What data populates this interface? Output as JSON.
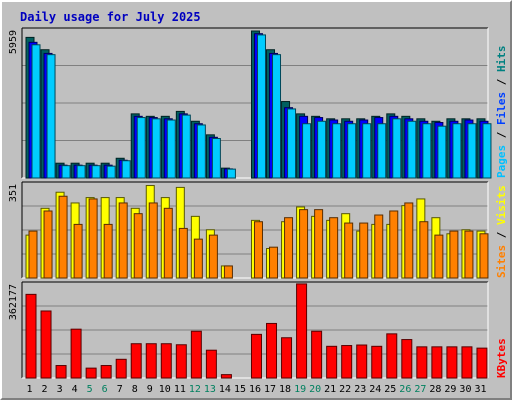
{
  "title": "Daily usage for July 2025",
  "chart_data": [
    {
      "type": "bar",
      "panel": "top",
      "max_label": "5959",
      "ylim": [
        0,
        5959
      ],
      "x": [
        1,
        2,
        3,
        4,
        5,
        6,
        7,
        8,
        9,
        10,
        11,
        12,
        13,
        14,
        15,
        16,
        17,
        18,
        19,
        20,
        21,
        22,
        23,
        24,
        25,
        26,
        27,
        28,
        29,
        30,
        31
      ],
      "series": [
        {
          "name": "Hits",
          "color": "#006060",
          "values": [
            5700,
            5200,
            600,
            600,
            600,
            600,
            800,
            2600,
            2500,
            2500,
            2700,
            2300,
            1750,
            400,
            0,
            5959,
            5200,
            3100,
            2600,
            2500,
            2400,
            2400,
            2400,
            2500,
            2600,
            2500,
            2400,
            2300,
            2400,
            2400,
            2400
          ]
        },
        {
          "name": "Files",
          "color": "#0000ff",
          "values": [
            5500,
            5050,
            520,
            520,
            520,
            520,
            720,
            2500,
            2450,
            2400,
            2600,
            2200,
            1650,
            370,
            0,
            5850,
            5050,
            2850,
            2500,
            2450,
            2350,
            2300,
            2350,
            2450,
            2500,
            2400,
            2300,
            2250,
            2300,
            2350,
            2300
          ]
        },
        {
          "name": "Pages",
          "color": "#00ccff",
          "values": [
            5400,
            5000,
            500,
            500,
            500,
            480,
            700,
            2450,
            2400,
            2350,
            2550,
            2150,
            1600,
            360,
            0,
            5800,
            5000,
            2800,
            2200,
            2300,
            2200,
            2200,
            2200,
            2200,
            2400,
            2300,
            2200,
            2100,
            2200,
            2200,
            2200
          ]
        }
      ],
      "right_labels": [
        {
          "text": "Pages",
          "color": "#00c0ff"
        },
        {
          "text": " / ",
          "color": "#000000"
        },
        {
          "text": "Files",
          "color": "#0040ff"
        },
        {
          "text": " / ",
          "color": "#000000"
        },
        {
          "text": "Hits",
          "color": "#008080"
        }
      ]
    },
    {
      "type": "bar",
      "panel": "middle",
      "max_label": "351",
      "ylim": [
        0,
        351
      ],
      "x": [
        1,
        2,
        3,
        4,
        5,
        6,
        7,
        8,
        9,
        10,
        11,
        12,
        13,
        14,
        15,
        16,
        17,
        18,
        19,
        20,
        21,
        22,
        23,
        24,
        25,
        26,
        27,
        28,
        29,
        30,
        31
      ],
      "series": [
        {
          "name": "Visits",
          "color": "#ffff00",
          "values": [
            160,
            260,
            320,
            280,
            300,
            300,
            300,
            260,
            345,
            300,
            338,
            230,
            180,
            45,
            0,
            215,
            110,
            210,
            265,
            230,
            215,
            240,
            175,
            200,
            200,
            270,
            295,
            225,
            165,
            180,
            175
          ]
        },
        {
          "name": "Sites",
          "color": "#ff8000",
          "values": [
            175,
            250,
            305,
            200,
            295,
            200,
            280,
            240,
            280,
            260,
            185,
            145,
            160,
            45,
            0,
            210,
            115,
            225,
            255,
            255,
            225,
            205,
            205,
            235,
            250,
            280,
            210,
            160,
            175,
            175,
            165
          ]
        }
      ],
      "right_labels": [
        {
          "text": "Sites",
          "color": "#ff8000"
        },
        {
          "text": " / ",
          "color": "#000000"
        },
        {
          "text": "Visits",
          "color": "#ffff00"
        }
      ]
    },
    {
      "type": "bar",
      "panel": "bottom",
      "max_label": "362177",
      "ylim": [
        0,
        362177
      ],
      "x": [
        1,
        2,
        3,
        4,
        5,
        6,
        7,
        8,
        9,
        10,
        11,
        12,
        13,
        14,
        15,
        16,
        17,
        18,
        19,
        20,
        21,
        22,
        23,
        24,
        25,
        26,
        27,
        28,
        29,
        30,
        31
      ],
      "series": [
        {
          "name": "KBytes",
          "color": "#ff0000",
          "values": [
            322000,
            258000,
            48000,
            188000,
            38000,
            48000,
            72000,
            132000,
            132000,
            132000,
            128000,
            180000,
            107000,
            13000,
            0,
            168000,
            210000,
            155000,
            362177,
            180000,
            122000,
            125000,
            127000,
            122000,
            170000,
            148000,
            120000,
            120000,
            120000,
            120000,
            115000
          ]
        }
      ],
      "right_labels": [
        {
          "text": "KBytes",
          "color": "#ff0000"
        }
      ]
    }
  ],
  "x_axis": {
    "days": [
      "1",
      "2",
      "3",
      "4",
      "5",
      "6",
      "7",
      "8",
      "9",
      "10",
      "11",
      "12",
      "13",
      "14",
      "15",
      "16",
      "17",
      "18",
      "19",
      "20",
      "21",
      "22",
      "23",
      "24",
      "25",
      "26",
      "27",
      "28",
      "29",
      "30",
      "31"
    ],
    "weekend_days": [
      5,
      6,
      12,
      13,
      19,
      20,
      26,
      27
    ],
    "weekday_color": "#000000",
    "weekend_color": "#00805f"
  }
}
